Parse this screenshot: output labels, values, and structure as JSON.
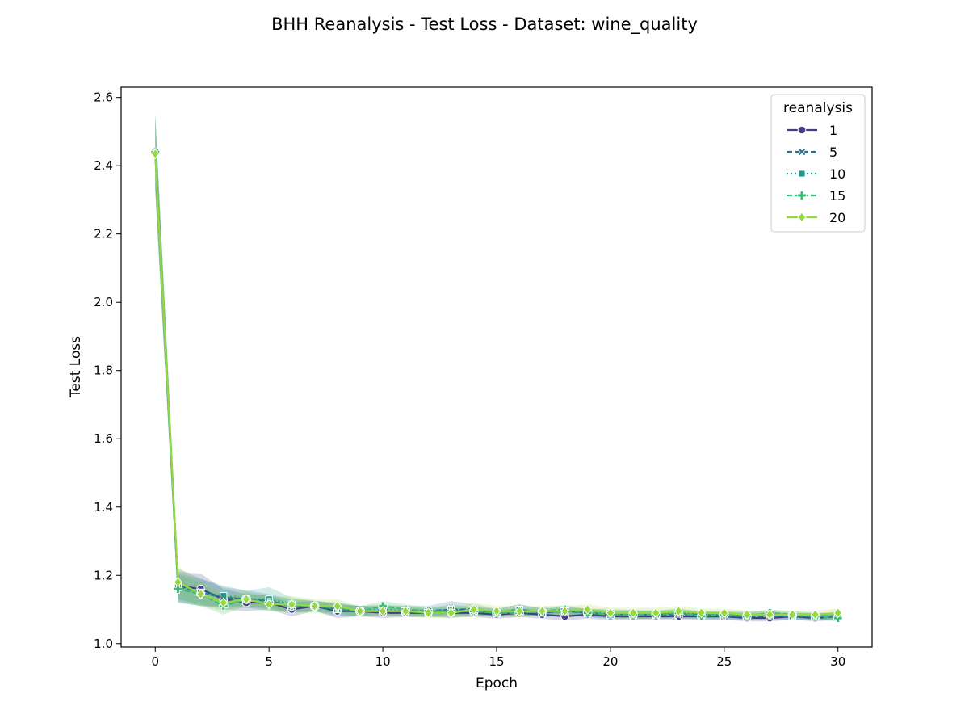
{
  "chart_data": {
    "type": "line",
    "title": "BHH Reanalysis - Test Loss - Dataset: wine_quality",
    "xlabel": "Epoch",
    "ylabel": "Test Loss",
    "xlim": [
      -1.5,
      31.5
    ],
    "ylim": [
      0.99,
      2.63
    ],
    "xticks": [
      0,
      5,
      10,
      15,
      20,
      25,
      30
    ],
    "yticks": [
      1.0,
      1.2,
      1.4,
      1.6,
      1.8,
      2.0,
      2.2,
      2.4,
      2.6
    ],
    "grid": false,
    "legend": {
      "title": "reanalysis",
      "placement": "top-right"
    },
    "x": [
      0,
      1,
      2,
      3,
      4,
      5,
      6,
      7,
      8,
      9,
      10,
      11,
      12,
      13,
      14,
      15,
      16,
      17,
      18,
      19,
      20,
      21,
      22,
      23,
      24,
      25,
      26,
      27,
      28,
      29,
      30
    ],
    "series": [
      {
        "name": "1",
        "color": "#433e85",
        "dash": "solid",
        "marker": "circle",
        "values": [
          2.44,
          1.17,
          1.16,
          1.13,
          1.12,
          1.12,
          1.1,
          1.11,
          1.095,
          1.095,
          1.09,
          1.09,
          1.09,
          1.09,
          1.09,
          1.085,
          1.09,
          1.085,
          1.08,
          1.085,
          1.08,
          1.08,
          1.08,
          1.08,
          1.08,
          1.08,
          1.075,
          1.075,
          1.08,
          1.075,
          1.08
        ],
        "band": [
          0.11,
          0.04,
          0.045,
          0.03,
          0.025,
          0.02,
          0.02,
          0.015,
          0.02,
          0.015,
          0.015,
          0.012,
          0.012,
          0.012,
          0.012,
          0.012,
          0.012,
          0.012,
          0.012,
          0.012,
          0.012,
          0.01,
          0.01,
          0.01,
          0.01,
          0.01,
          0.01,
          0.01,
          0.01,
          0.01,
          0.01
        ]
      },
      {
        "name": "5",
        "color": "#2d708e",
        "dash": "dashed",
        "marker": "x",
        "values": [
          2.44,
          1.17,
          1.15,
          1.135,
          1.13,
          1.125,
          1.11,
          1.11,
          1.1,
          1.095,
          1.095,
          1.095,
          1.095,
          1.1,
          1.1,
          1.09,
          1.1,
          1.09,
          1.095,
          1.09,
          1.085,
          1.085,
          1.085,
          1.085,
          1.085,
          1.08,
          1.08,
          1.08,
          1.08,
          1.08,
          1.08
        ],
        "band": [
          0.11,
          0.05,
          0.04,
          0.03,
          0.025,
          0.02,
          0.02,
          0.015,
          0.02,
          0.015,
          0.015,
          0.015,
          0.015,
          0.025,
          0.015,
          0.012,
          0.015,
          0.012,
          0.012,
          0.012,
          0.012,
          0.012,
          0.012,
          0.012,
          0.012,
          0.01,
          0.01,
          0.01,
          0.01,
          0.01,
          0.01
        ]
      },
      {
        "name": "10",
        "color": "#1f988b",
        "dash": "dotted",
        "marker": "square",
        "values": [
          2.44,
          1.165,
          1.15,
          1.14,
          1.13,
          1.13,
          1.115,
          1.11,
          1.1,
          1.095,
          1.1,
          1.095,
          1.09,
          1.1,
          1.095,
          1.09,
          1.1,
          1.09,
          1.095,
          1.09,
          1.09,
          1.085,
          1.085,
          1.09,
          1.085,
          1.085,
          1.085,
          1.085,
          1.08,
          1.08,
          1.08
        ],
        "band": [
          0.11,
          0.04,
          0.04,
          0.03,
          0.025,
          0.035,
          0.02,
          0.015,
          0.015,
          0.015,
          0.015,
          0.015,
          0.012,
          0.015,
          0.012,
          0.012,
          0.015,
          0.012,
          0.012,
          0.012,
          0.012,
          0.012,
          0.01,
          0.012,
          0.01,
          0.01,
          0.01,
          0.01,
          0.01,
          0.01,
          0.01
        ]
      },
      {
        "name": "15",
        "color": "#3cbb75",
        "dash": "dashed",
        "marker": "plus",
        "values": [
          2.44,
          1.16,
          1.145,
          1.11,
          1.13,
          1.12,
          1.11,
          1.11,
          1.105,
          1.095,
          1.11,
          1.1,
          1.095,
          1.095,
          1.095,
          1.09,
          1.09,
          1.095,
          1.1,
          1.09,
          1.085,
          1.085,
          1.085,
          1.09,
          1.08,
          1.085,
          1.08,
          1.09,
          1.085,
          1.08,
          1.075
        ],
        "band": [
          0.11,
          0.04,
          0.035,
          0.025,
          0.02,
          0.02,
          0.02,
          0.015,
          0.015,
          0.015,
          0.015,
          0.015,
          0.012,
          0.012,
          0.012,
          0.012,
          0.012,
          0.012,
          0.012,
          0.012,
          0.012,
          0.012,
          0.012,
          0.012,
          0.01,
          0.01,
          0.01,
          0.01,
          0.01,
          0.01,
          0.01
        ]
      },
      {
        "name": "20",
        "color": "#95d840",
        "dash": "solid",
        "marker": "diamond",
        "values": [
          2.435,
          1.18,
          1.145,
          1.12,
          1.13,
          1.115,
          1.115,
          1.11,
          1.11,
          1.095,
          1.095,
          1.095,
          1.09,
          1.09,
          1.1,
          1.095,
          1.095,
          1.095,
          1.095,
          1.1,
          1.09,
          1.09,
          1.09,
          1.095,
          1.09,
          1.09,
          1.085,
          1.085,
          1.085,
          1.085,
          1.09
        ],
        "band": [
          0.11,
          0.045,
          0.035,
          0.025,
          0.02,
          0.02,
          0.025,
          0.02,
          0.02,
          0.015,
          0.015,
          0.015,
          0.015,
          0.015,
          0.02,
          0.015,
          0.015,
          0.015,
          0.015,
          0.015,
          0.015,
          0.015,
          0.015,
          0.015,
          0.012,
          0.012,
          0.012,
          0.012,
          0.012,
          0.012,
          0.012
        ]
      }
    ]
  }
}
